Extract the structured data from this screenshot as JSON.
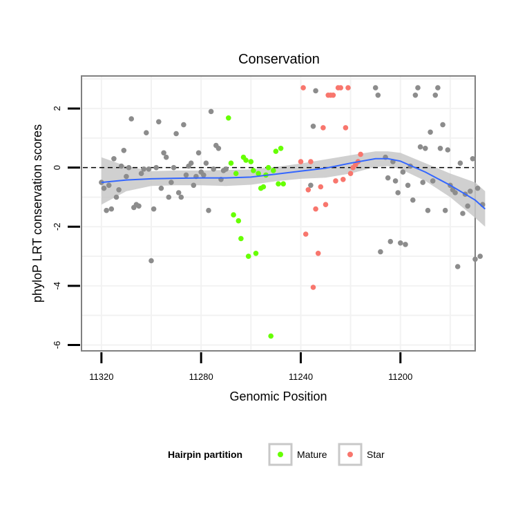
{
  "chart_data": {
    "type": "scatter",
    "title": "Conservation",
    "xlabel": "Genomic Position",
    "ylabel": "phyloP LRT conservation scores",
    "x_reversed": true,
    "xlim": [
      11328,
      11170
    ],
    "ylim": [
      -6.2,
      3.1
    ],
    "x_ticks": [
      11320,
      11280,
      11240,
      11200
    ],
    "y_ticks": [
      -6,
      -4,
      -2,
      0,
      2
    ],
    "grid": true,
    "reference_line": {
      "y": 0,
      "style": "dashed"
    },
    "legend": {
      "title": "Hairpin partition",
      "position": "bottom",
      "entries": [
        {
          "label": "Mature",
          "color": "#66ff00"
        },
        {
          "label": "Star",
          "color": "#f8766d"
        }
      ]
    },
    "colors": {
      "unassigned": "#8c8c8c",
      "smooth_line": "#3366ff",
      "confidence_band": "#c8c8c8"
    },
    "series": [
      {
        "group": "none",
        "points": [
          [
            11320,
            -0.5
          ],
          [
            11319,
            -0.7
          ],
          [
            11318,
            -1.45
          ],
          [
            11317,
            -0.6
          ],
          [
            11316,
            -1.4
          ],
          [
            11315,
            0.3
          ],
          [
            11314,
            -1.0
          ],
          [
            11313,
            -0.75
          ],
          [
            11312,
            0.05
          ],
          [
            11311,
            0.58
          ],
          [
            11310,
            -0.3
          ],
          [
            11309,
            0.0
          ],
          [
            11308,
            1.65
          ],
          [
            11307,
            -1.35
          ],
          [
            11306,
            -1.25
          ],
          [
            11305,
            -1.3
          ],
          [
            11304,
            -0.2
          ],
          [
            11303,
            -0.05
          ],
          [
            11302,
            1.18
          ],
          [
            11301,
            -0.05
          ],
          [
            11300,
            -3.15
          ],
          [
            11299,
            -1.4
          ],
          [
            11298,
            0.0
          ],
          [
            11297,
            1.55
          ],
          [
            11296,
            -0.7
          ],
          [
            11295,
            0.5
          ],
          [
            11294,
            0.35
          ],
          [
            11293,
            -1.0
          ],
          [
            11292,
            -0.5
          ],
          [
            11291,
            0.0
          ],
          [
            11290,
            1.15
          ],
          [
            11289,
            -0.85
          ],
          [
            11288,
            -1.0
          ],
          [
            11287,
            1.45
          ],
          [
            11286,
            -0.25
          ],
          [
            11285,
            0.05
          ],
          [
            11284,
            0.15
          ],
          [
            11283,
            -0.6
          ],
          [
            11282,
            -0.3
          ],
          [
            11281,
            0.5
          ],
          [
            11280,
            -0.15
          ],
          [
            11279,
            -0.25
          ],
          [
            11278,
            0.15
          ],
          [
            11277,
            -1.45
          ],
          [
            11276,
            1.9
          ],
          [
            11275,
            -0.05
          ],
          [
            11274,
            0.75
          ],
          [
            11273,
            0.65
          ],
          [
            11272,
            -0.4
          ],
          [
            11271,
            -0.1
          ],
          [
            11270,
            -0.05
          ],
          [
            11236,
            -0.6
          ],
          [
            11235,
            1.4
          ],
          [
            11234,
            2.6
          ],
          [
            11210,
            2.7
          ],
          [
            11209,
            2.45
          ],
          [
            11208,
            -2.85
          ],
          [
            11206,
            0.35
          ],
          [
            11205,
            -0.35
          ],
          [
            11204,
            -2.5
          ],
          [
            11203,
            0.2
          ],
          [
            11202,
            -0.45
          ],
          [
            11201,
            -0.85
          ],
          [
            11200,
            -2.55
          ],
          [
            11199,
            -0.15
          ],
          [
            11198,
            -2.6
          ],
          [
            11197,
            -0.6
          ],
          [
            11196,
            0.05
          ],
          [
            11195,
            -1.1
          ],
          [
            11194,
            2.45
          ],
          [
            11193,
            2.7
          ],
          [
            11192,
            0.7
          ],
          [
            11191,
            -0.5
          ],
          [
            11190,
            0.65
          ],
          [
            11189,
            -1.45
          ],
          [
            11188,
            1.2
          ],
          [
            11187,
            -0.45
          ],
          [
            11186,
            2.45
          ],
          [
            11185,
            2.7
          ],
          [
            11184,
            0.65
          ],
          [
            11183,
            1.45
          ],
          [
            11182,
            -1.45
          ],
          [
            11181,
            0.6
          ],
          [
            11180,
            -0.6
          ],
          [
            11179,
            -0.75
          ],
          [
            11178,
            -0.85
          ],
          [
            11177,
            -3.35
          ],
          [
            11176,
            0.15
          ],
          [
            11175,
            -1.55
          ],
          [
            11174,
            -0.9
          ],
          [
            11173,
            -1.3
          ],
          [
            11172,
            -0.8
          ],
          [
            11171,
            0.3
          ],
          [
            11170,
            -3.1
          ],
          [
            11169,
            -0.7
          ],
          [
            11168,
            -3.0
          ],
          [
            11167,
            -1.25
          ]
        ]
      },
      {
        "group": "Mature",
        "name": "Mature",
        "points": [
          [
            11269,
            1.68
          ],
          [
            11268,
            0.15
          ],
          [
            11267,
            -1.6
          ],
          [
            11266,
            -0.2
          ],
          [
            11265,
            -1.8
          ],
          [
            11264,
            -2.4
          ],
          [
            11263,
            0.35
          ],
          [
            11262,
            0.25
          ],
          [
            11261,
            -3.0
          ],
          [
            11260,
            0.2
          ],
          [
            11259,
            -0.1
          ],
          [
            11258,
            -2.9
          ],
          [
            11257,
            -0.2
          ],
          [
            11256,
            -0.7
          ],
          [
            11255,
            -0.65
          ],
          [
            11254,
            -0.25
          ],
          [
            11253,
            0.0
          ],
          [
            11252,
            -5.7
          ],
          [
            11251,
            -0.1
          ],
          [
            11250,
            0.55
          ],
          [
            11249,
            -0.55
          ],
          [
            11248,
            0.65
          ],
          [
            11247,
            -0.55
          ]
        ]
      },
      {
        "group": "Star",
        "name": "Star",
        "points": [
          [
            11240,
            0.2
          ],
          [
            11239,
            2.7
          ],
          [
            11238,
            -2.25
          ],
          [
            11237,
            -0.75
          ],
          [
            11236,
            0.2
          ],
          [
            11235,
            -4.05
          ],
          [
            11234,
            -1.4
          ],
          [
            11233,
            -2.9
          ],
          [
            11232,
            -0.65
          ],
          [
            11231,
            1.35
          ],
          [
            11230,
            -1.25
          ],
          [
            11229,
            2.45
          ],
          [
            11228,
            2.45
          ],
          [
            11227,
            2.45
          ],
          [
            11226,
            -0.45
          ],
          [
            11225,
            2.7
          ],
          [
            11224,
            2.7
          ],
          [
            11223,
            -0.4
          ],
          [
            11222,
            1.35
          ],
          [
            11221,
            2.7
          ],
          [
            11220,
            -0.2
          ],
          [
            11219,
            0.0
          ],
          [
            11218,
            0.1
          ],
          [
            11217,
            0.2
          ],
          [
            11216,
            0.45
          ]
        ]
      }
    ],
    "smooth": {
      "x": [
        11320,
        11310,
        11300,
        11290,
        11280,
        11270,
        11260,
        11250,
        11240,
        11230,
        11220,
        11210,
        11205,
        11200,
        11190,
        11180,
        11170,
        11166
      ],
      "y": [
        -0.5,
        -0.42,
        -0.38,
        -0.36,
        -0.35,
        -0.35,
        -0.32,
        -0.22,
        -0.12,
        -0.02,
        0.15,
        0.3,
        0.3,
        0.22,
        -0.15,
        -0.6,
        -1.1,
        -1.4
      ],
      "lower": [
        -1.25,
        -0.8,
        -0.62,
        -0.6,
        -0.6,
        -0.62,
        -0.58,
        -0.46,
        -0.38,
        -0.34,
        -0.2,
        0.02,
        0.05,
        -0.05,
        -0.45,
        -1.0,
        -1.7,
        -2.0
      ],
      "upper": [
        0.35,
        0.05,
        -0.12,
        -0.1,
        -0.1,
        -0.08,
        -0.06,
        0.02,
        0.14,
        0.28,
        0.42,
        0.55,
        0.55,
        0.5,
        0.15,
        -0.2,
        -0.5,
        -0.8
      ]
    }
  }
}
